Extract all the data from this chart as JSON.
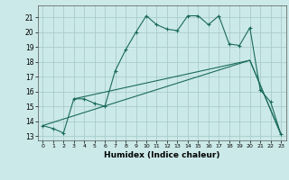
{
  "xlabel": "Humidex (Indice chaleur)",
  "bg_color": "#cce9e9",
  "grid_color": "#aacccc",
  "line_color": "#1a6b5a",
  "xlim": [
    -0.5,
    23.5
  ],
  "ylim": [
    12.7,
    21.8
  ],
  "yticks": [
    13,
    14,
    15,
    16,
    17,
    18,
    19,
    20,
    21
  ],
  "xticks": [
    0,
    1,
    2,
    3,
    4,
    5,
    6,
    7,
    8,
    9,
    10,
    11,
    12,
    13,
    14,
    15,
    16,
    17,
    18,
    19,
    20,
    21,
    22,
    23
  ],
  "line1_x": [
    0,
    1,
    2,
    3,
    4,
    5,
    6,
    7,
    8,
    9,
    10,
    11,
    12,
    13,
    14,
    15,
    16,
    17,
    18,
    19,
    20,
    21,
    22,
    23
  ],
  "line1_y": [
    13.7,
    13.5,
    13.2,
    15.5,
    15.5,
    15.2,
    15.0,
    17.4,
    18.8,
    20.0,
    21.1,
    20.5,
    20.2,
    20.1,
    21.1,
    21.1,
    20.5,
    21.1,
    19.2,
    19.1,
    20.3,
    16.1,
    15.3,
    13.1
  ],
  "line2_x": [
    0,
    20,
    23
  ],
  "line2_y": [
    13.7,
    18.1,
    13.1
  ],
  "line3_x": [
    3,
    20,
    23
  ],
  "line3_y": [
    15.5,
    18.1,
    13.1
  ]
}
